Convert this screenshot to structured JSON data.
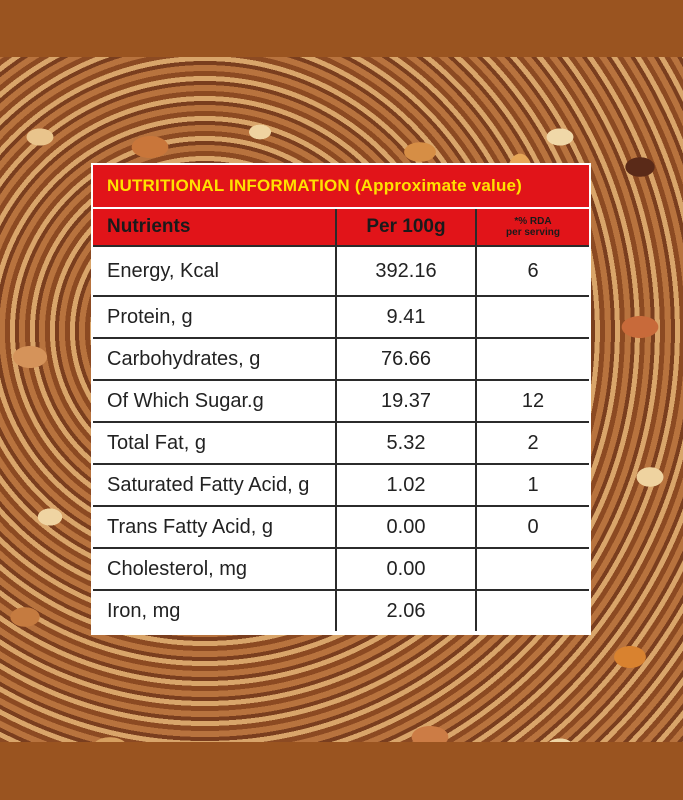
{
  "panel": {
    "title": "NUTRITIONAL INFORMATION (Approximate value)",
    "headers": {
      "nutrients": "Nutrients",
      "per100g": "Per 100g",
      "rda_line1": "*% RDA",
      "rda_line2": "per serving"
    },
    "rows": [
      {
        "name": "Energy, Kcal",
        "per100g": "392.16",
        "rda": "6"
      },
      {
        "name": "Protein, g",
        "per100g": "9.41",
        "rda": ""
      },
      {
        "name": "Carbohydrates, g",
        "per100g": "76.66",
        "rda": ""
      },
      {
        "name": "Of Which Sugar.g",
        "per100g": "19.37",
        "rda": "12"
      },
      {
        "name": "Total Fat, g",
        "per100g": "5.32",
        "rda": "2"
      },
      {
        "name": "Saturated Fatty Acid, g",
        "per100g": "1.02",
        "rda": "1"
      },
      {
        "name": "Trans Fatty Acid, g",
        "per100g": "0.00",
        "rda": "0"
      },
      {
        "name": "Cholesterol, mg",
        "per100g": "0.00",
        "rda": ""
      },
      {
        "name": "Iron, mg",
        "per100g": "2.06",
        "rda": ""
      }
    ]
  },
  "colors": {
    "header_red": "#e11419",
    "title_yellow": "#ffe100",
    "frame_brown": "#9a5420"
  }
}
